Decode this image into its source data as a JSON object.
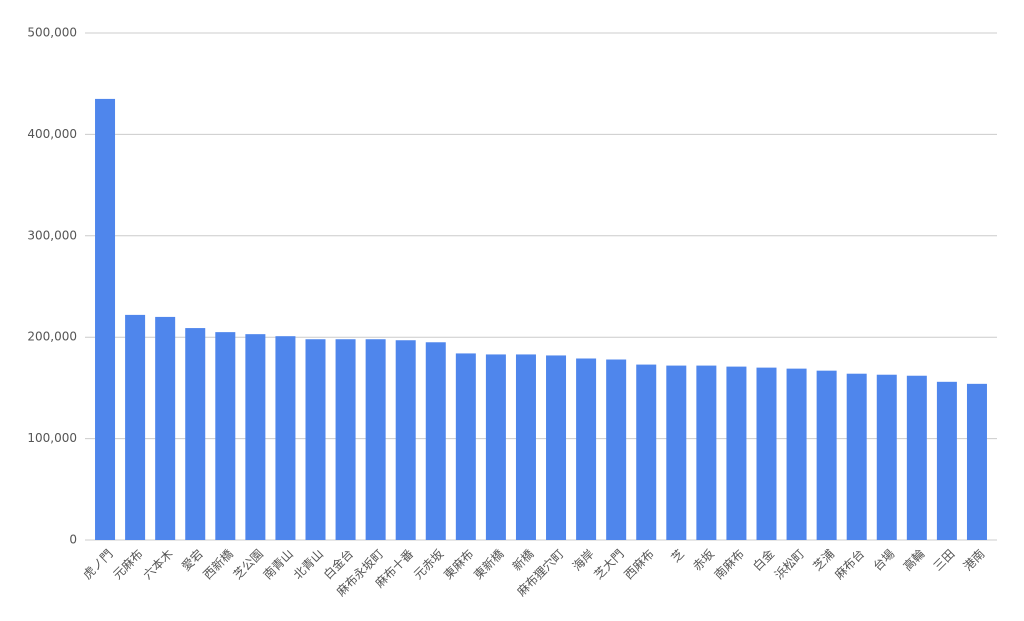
{
  "chart_data": {
    "type": "bar",
    "categories": [
      "虎ノ門",
      "元麻布",
      "六本木",
      "愛宕",
      "西新橋",
      "芝公園",
      "南青山",
      "北青山",
      "白金台",
      "麻布永坂町",
      "麻布十番",
      "元赤坂",
      "東麻布",
      "東新橋",
      "新橋",
      "麻布狸穴町",
      "海岸",
      "芝大門",
      "西麻布",
      "芝",
      "赤坂",
      "南麻布",
      "白金",
      "浜松町",
      "芝浦",
      "麻布台",
      "台場",
      "高輪",
      "三田",
      "港南"
    ],
    "values": [
      435000,
      222000,
      220000,
      209000,
      205000,
      203000,
      201000,
      198000,
      198000,
      198000,
      197000,
      195000,
      184000,
      183000,
      183000,
      182000,
      179000,
      178000,
      173000,
      172000,
      172000,
      171000,
      170000,
      169000,
      167000,
      164000,
      163000,
      162000,
      156000,
      154000
    ],
    "color": "#4f86ec",
    "ylim": [
      0,
      500000
    ],
    "yticks": [
      0,
      {
        "value": 100000,
        "label": "100,000"
      },
      {
        "value": 200000,
        "label": "200,000"
      },
      {
        "value": 300000,
        "label": "300,000"
      },
      {
        "value": 400000,
        "label": "400,000"
      },
      {
        "value": 500000,
        "label": "500,000"
      }
    ],
    "grid": true
  }
}
